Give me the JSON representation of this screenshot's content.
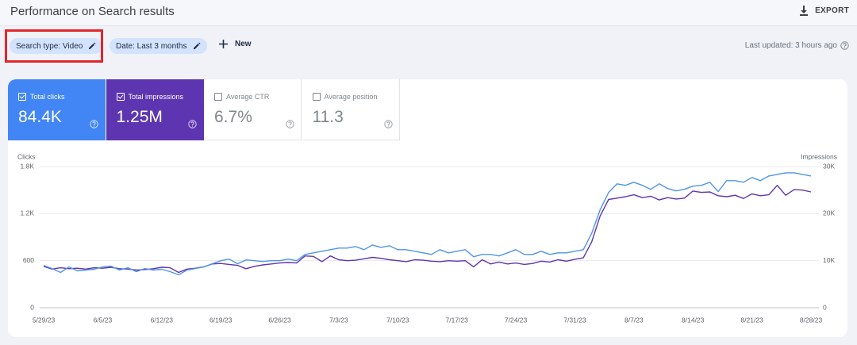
{
  "header": {
    "title": "Performance on Search results",
    "export": "EXPORT"
  },
  "filters": {
    "search_type": "Search type: Video",
    "date": "Date: Last 3 months",
    "new": "New",
    "last_updated": "Last updated: 3 hours ago"
  },
  "metrics": [
    {
      "label": "Total clicks",
      "value": "84.4K",
      "selected": true
    },
    {
      "label": "Total impressions",
      "value": "1.25M",
      "selected": true
    },
    {
      "label": "Average CTR",
      "value": "6.7%",
      "selected": false
    },
    {
      "label": "Average position",
      "value": "11.3",
      "selected": false
    }
  ],
  "chart_data": {
    "type": "line",
    "y_label": "Clicks",
    "y2_label": "Impressions",
    "categories": [
      "5/29/23",
      null,
      null,
      null,
      null,
      null,
      null,
      "6/5/23",
      null,
      null,
      null,
      null,
      null,
      null,
      "6/12/23",
      null,
      null,
      null,
      null,
      null,
      null,
      "6/19/23",
      null,
      null,
      null,
      null,
      null,
      null,
      "6/26/23",
      null,
      null,
      null,
      null,
      null,
      null,
      "7/3/23",
      null,
      null,
      null,
      null,
      null,
      null,
      "7/10/23",
      null,
      null,
      null,
      null,
      null,
      null,
      "7/17/23",
      null,
      null,
      null,
      null,
      null,
      null,
      "7/24/23",
      null,
      null,
      null,
      null,
      null,
      null,
      "7/31/23",
      null,
      null,
      null,
      null,
      null,
      null,
      "8/7/23",
      null,
      null,
      null,
      null,
      null,
      null,
      "8/14/23",
      null,
      null,
      null,
      null,
      null,
      null,
      "8/21/23",
      null,
      null,
      null,
      null,
      null,
      null,
      "8/28/23"
    ],
    "ylim": [
      0,
      1800
    ],
    "yticks": [
      0,
      600,
      {
        "value": 1200,
        "label": "1.2K"
      },
      {
        "value": 1800,
        "label": "1.8K"
      }
    ],
    "y2lim": [
      0,
      30000
    ],
    "y2ticks": [
      0,
      {
        "value": 10000,
        "label": "10K"
      },
      {
        "value": 20000,
        "label": "20K"
      },
      {
        "value": 30000,
        "label": "30K"
      }
    ],
    "grid": true,
    "series": [
      {
        "name": "Clicks",
        "color": "#4f95e8",
        "values": [
          540,
          500,
          450,
          520,
          470,
          480,
          490,
          520,
          530,
          480,
          510,
          460,
          500,
          480,
          490,
          460,
          420,
          480,
          500,
          520,
          560,
          600,
          620,
          560,
          610,
          600,
          590,
          600,
          600,
          620,
          600,
          680,
          700,
          720,
          740,
          760,
          760,
          780,
          740,
          800,
          770,
          790,
          740,
          740,
          720,
          700,
          680,
          740,
          700,
          720,
          740,
          650,
          680,
          680,
          660,
          700,
          740,
          680,
          680,
          720,
          680,
          700,
          700,
          720,
          740,
          950,
          1250,
          1470,
          1580,
          1560,
          1600,
          1560,
          1510,
          1580,
          1520,
          1490,
          1510,
          1550,
          1560,
          1600,
          1480,
          1620,
          1620,
          1600,
          1660,
          1620,
          1680,
          1700,
          1720,
          1720,
          1700,
          1680
        ]
      },
      {
        "name": "Impressions",
        "color": "#5e35b1",
        "axis": "y2",
        "values": [
          8800,
          8200,
          8500,
          8300,
          8400,
          8200,
          8500,
          8400,
          8600,
          8300,
          8200,
          8000,
          8100,
          8300,
          8600,
          8500,
          7500,
          8200,
          8400,
          8700,
          9300,
          9400,
          9200,
          9000,
          8300,
          8800,
          9100,
          9300,
          9500,
          9600,
          9500,
          11000,
          10900,
          9800,
          11000,
          10200,
          10000,
          10100,
          10400,
          10700,
          10500,
          10200,
          10000,
          9800,
          10200,
          10100,
          9900,
          9800,
          10000,
          9900,
          10000,
          8700,
          10200,
          9300,
          9700,
          9300,
          9500,
          9200,
          9400,
          9900,
          9700,
          10200,
          9900,
          10300,
          10600,
          14000,
          19500,
          23000,
          23300,
          23600,
          24000,
          23400,
          23700,
          22900,
          23400,
          23100,
          23300,
          24800,
          24500,
          24600,
          23800,
          23600,
          23900,
          23200,
          24200,
          23800,
          24000,
          26000,
          23900,
          25100,
          25000,
          24600
        ]
      }
    ]
  }
}
